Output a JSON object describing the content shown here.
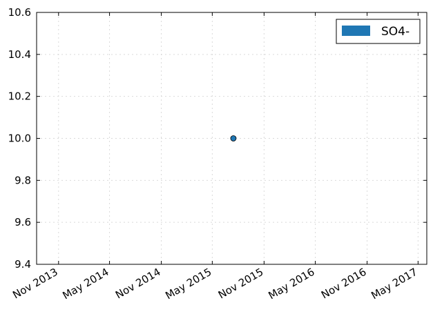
{
  "chart_data": {
    "type": "scatter",
    "title": "",
    "xlabel": "",
    "ylabel": "",
    "x_axis_type": "date",
    "xlim": [
      "2013-08-15",
      "2017-06-01"
    ],
    "ylim": [
      9.4,
      10.6
    ],
    "x_ticks": [
      {
        "value": "2013-11-01",
        "label": "Nov 2013"
      },
      {
        "value": "2014-05-01",
        "label": "May 2014"
      },
      {
        "value": "2014-11-01",
        "label": "Nov 2014"
      },
      {
        "value": "2015-05-01",
        "label": "May 2015"
      },
      {
        "value": "2015-11-01",
        "label": "Nov 2015"
      },
      {
        "value": "2016-05-01",
        "label": "May 2016"
      },
      {
        "value": "2016-11-01",
        "label": "Nov 2016"
      },
      {
        "value": "2017-05-01",
        "label": "May 2017"
      }
    ],
    "y_ticks": [
      {
        "value": 9.4,
        "label": "9.4"
      },
      {
        "value": 9.6,
        "label": "9.6"
      },
      {
        "value": 9.8,
        "label": "9.8"
      },
      {
        "value": 10.0,
        "label": "10.0"
      },
      {
        "value": 10.2,
        "label": "10.2"
      },
      {
        "value": 10.4,
        "label": "10.4"
      },
      {
        "value": 10.6,
        "label": "10.6"
      }
    ],
    "grid": true,
    "legend_position": "top-right",
    "series": [
      {
        "name": "SO4-",
        "color": "#1f77b4",
        "points": [
          {
            "x": "2015-07-15",
            "y": 10.0
          }
        ]
      }
    ]
  }
}
